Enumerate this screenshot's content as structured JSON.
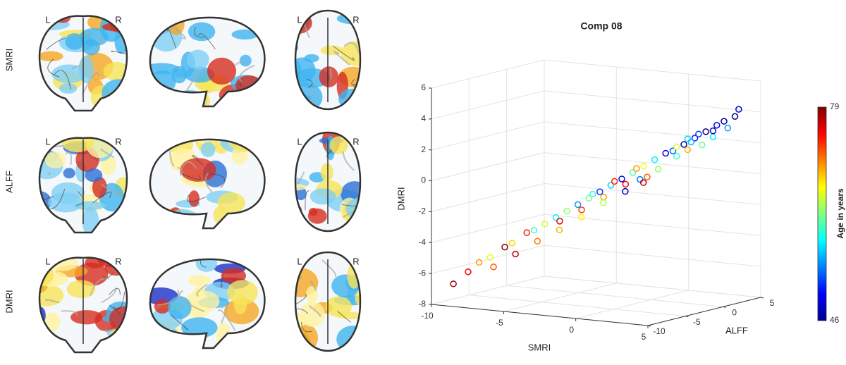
{
  "brain_panel": {
    "row_labels": [
      "SMRI",
      "ALFF",
      "DMRI"
    ],
    "left_label": "L",
    "right_label": "R"
  },
  "chart_data": {
    "type": "scatter3d",
    "title": "Comp 08",
    "xlabel": "SMRI",
    "ylabel": "ALFF",
    "zlabel": "DMRI",
    "xlim": [
      -10,
      5
    ],
    "xticks": [
      -10,
      -5,
      0,
      5
    ],
    "ylim": [
      -10,
      5
    ],
    "yticks": [
      -10,
      -5,
      0,
      5
    ],
    "zlim": [
      -8,
      6
    ],
    "zticks": [
      -8,
      -6,
      -4,
      -2,
      0,
      2,
      4,
      6
    ],
    "grid": true,
    "colormap": "jet",
    "series": [
      {
        "x": [
          -9,
          -8.5,
          -8,
          -7.5,
          -7,
          -7,
          -6.5,
          -6,
          -6,
          -5.5,
          -5,
          -5,
          -4.5,
          -4.5,
          -4,
          -4,
          -3.5,
          -3.5,
          -3,
          -3,
          -2.5,
          -2.5,
          -2,
          -2,
          -1.5,
          -1.5,
          -1,
          -1,
          -0.5,
          -0.5,
          0,
          0,
          0.5,
          0.5,
          1,
          1,
          1.5,
          1.5,
          2,
          2,
          2.5,
          2.5,
          3,
          3,
          3.5,
          3.5,
          4,
          4,
          -1,
          1,
          2,
          0,
          -3,
          3,
          -2,
          1.5
        ],
        "y": [
          -9,
          -8,
          -7.5,
          -7,
          -6,
          -7.5,
          -6,
          -5,
          -6.5,
          -5,
          -4.5,
          -5.5,
          -4,
          -3.5,
          -3.5,
          -4.5,
          -3,
          -2.5,
          -2.5,
          -3.5,
          -2,
          -1.5,
          -1.5,
          -2.5,
          -1,
          -0.5,
          -0.5,
          -1.5,
          0,
          -0.5,
          0.5,
          -0.5,
          1,
          0,
          1,
          1.5,
          1.5,
          2,
          2,
          1.5,
          2.5,
          2,
          3,
          2.5,
          3,
          3.5,
          3.5,
          4,
          0,
          1.5,
          2.5,
          -1,
          -2,
          2.5,
          -1,
          2
        ],
        "z": [
          -6.7,
          -6.0,
          -5.4,
          -5.1,
          -4.5,
          -5.6,
          -4.2,
          -3.6,
          -4.8,
          -3.4,
          -3.0,
          -4.0,
          -2.6,
          -2.9,
          -2.2,
          -3.3,
          -1.8,
          -2.2,
          -1.4,
          -2.5,
          -1.0,
          -1.4,
          -0.6,
          -1.6,
          -0.2,
          -0.6,
          0.2,
          -0.9,
          0.6,
          -0.2,
          1.0,
          0.0,
          1.4,
          0.5,
          1.6,
          1.2,
          2.0,
          1.6,
          2.4,
          2.2,
          2.8,
          2.0,
          3.2,
          2.5,
          3.5,
          3.0,
          3.8,
          4.2,
          0.4,
          1.8,
          2.6,
          -0.3,
          -1.2,
          2.9,
          -0.4,
          2.3
        ],
        "c": [
          78,
          75,
          70,
          66,
          79,
          72,
          68,
          74,
          77,
          60,
          65,
          71,
          58,
          76,
          63,
          69,
          55,
          73,
          62,
          67,
          52,
          70,
          57,
          64,
          50,
          75,
          61,
          48,
          66,
          54,
          58,
          72,
          49,
          63,
          53,
          60,
          47,
          69,
          51,
          56,
          46,
          62,
          50,
          58,
          47,
          55,
          46,
          49,
          70,
          65,
          52,
          77,
          60,
          48,
          74,
          57
        ]
      }
    ],
    "colorbar": {
      "label": "Age in years",
      "lim": [
        46,
        79
      ],
      "ticks": [
        46,
        79
      ]
    }
  }
}
